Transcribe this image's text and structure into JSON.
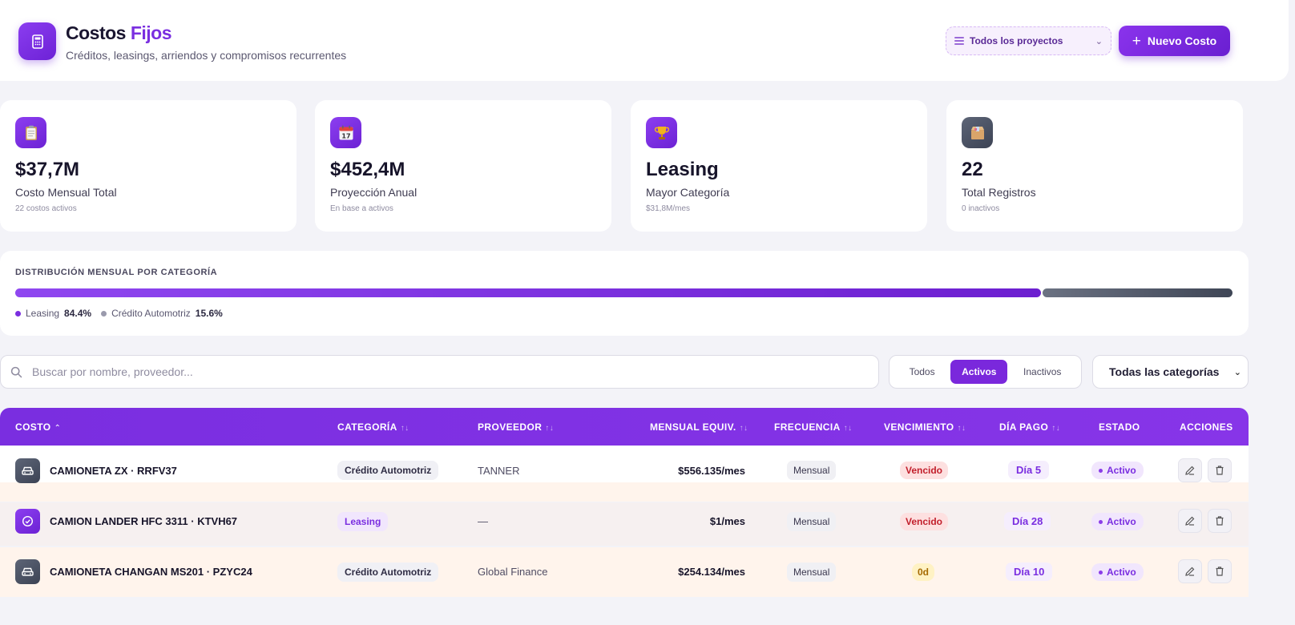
{
  "header": {
    "title_main": "Costos",
    "title_accent": "Fijos",
    "subtitle": "Créditos, leasings, arriendos y compromisos recurrentes",
    "project_select": "Todos los proyectos",
    "new_button": "Nuevo Costo"
  },
  "stats": [
    {
      "icon": "clipboard-icon",
      "value": "$37,7M",
      "label": "Costo Mensual Total",
      "sub": "22 costos activos"
    },
    {
      "icon": "calendar-icon",
      "value": "$452,4M",
      "label": "Proyección Anual",
      "sub": "En base a activos"
    },
    {
      "icon": "trophy-icon",
      "value": "Leasing",
      "label": "Mayor Categoría",
      "sub": "$31,8M/mes"
    },
    {
      "icon": "box-icon",
      "value": "22",
      "label": "Total Registros",
      "sub": "0 inactivos"
    }
  ],
  "distribution": {
    "title": "DISTRIBUCIÓN MENSUAL POR CATEGORÍA",
    "items": [
      {
        "name": "Leasing",
        "pct_label": "84.4%",
        "fraction": 0.844,
        "color": "#7a2ee0"
      },
      {
        "name": "Crédito Automotriz",
        "pct_label": "15.6%",
        "fraction": 0.156,
        "color": "#9a9aac"
      }
    ]
  },
  "filters": {
    "search_placeholder": "Buscar por nombre, proveedor...",
    "status_tabs": [
      "Todos",
      "Activos",
      "Inactivos"
    ],
    "status_active": "Activos",
    "category_select": "Todas las categorías"
  },
  "table": {
    "columns": {
      "costo": "COSTO",
      "categoria": "CATEGORÍA",
      "proveedor": "PROVEEDOR",
      "mensual": "MENSUAL EQUIV.",
      "frecuencia": "FRECUENCIA",
      "vencimiento": "VENCIMIENTO",
      "dia_pago": "DÍA PAGO",
      "estado": "ESTADO",
      "acciones": "ACCIONES"
    },
    "rows": [
      {
        "icon": "car-icon",
        "name": "CAMIONETA ZX · RRFV37",
        "categoria": "Crédito Automotriz",
        "proveedor": "TANNER",
        "mensual": "$556.135/mes",
        "frecuencia": "Mensual",
        "vencimiento": "Vencido",
        "dia_pago": "Día 5",
        "estado": "Activo"
      },
      {
        "icon": "check-circle-icon",
        "name": "CAMION LANDER HFC 3311 · KTVH67",
        "categoria": "Leasing",
        "proveedor": "—",
        "mensual": "$1/mes",
        "frecuencia": "Mensual",
        "vencimiento": "Vencido",
        "dia_pago": "Día 28",
        "estado": "Activo"
      },
      {
        "icon": "car-icon",
        "name": "CAMIONETA CHANGAN MS201 · PZYC24",
        "categoria": "Crédito Automotriz",
        "proveedor": "Global Finance",
        "mensual": "$254.134/mes",
        "frecuencia": "Mensual",
        "vencimiento": "0d",
        "dia_pago": "Día 10",
        "estado": "Activo"
      }
    ]
  }
}
